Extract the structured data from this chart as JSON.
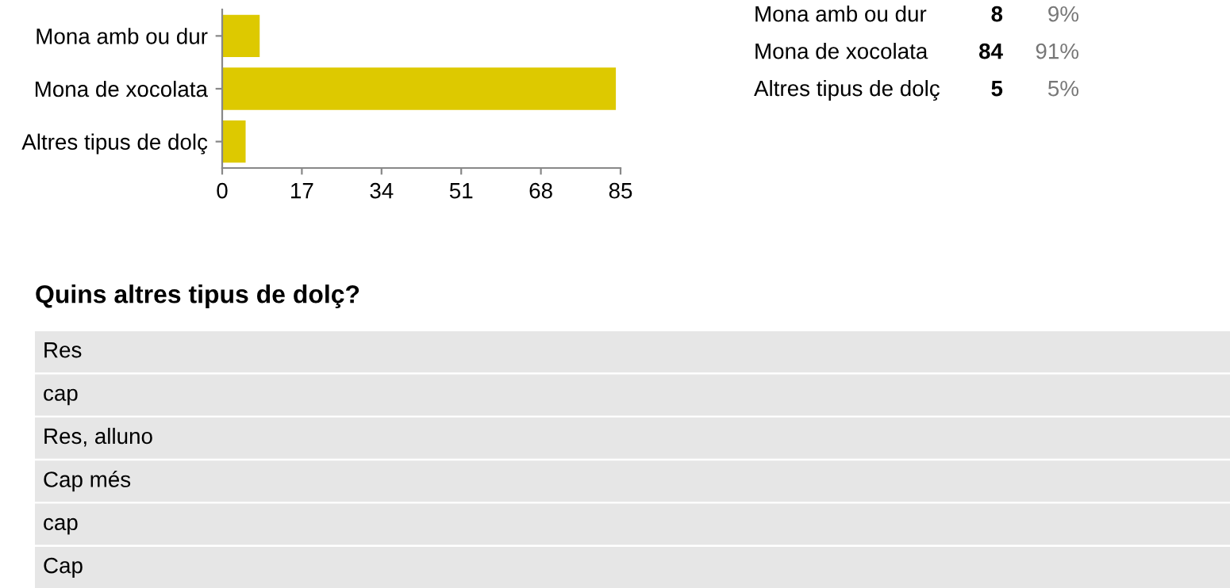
{
  "chart_data": [
    {
      "type": "bar",
      "orientation": "horizontal",
      "categories": [
        "Mona amb ou dur",
        "Mona de xocolata",
        "Altres tipus de dolç"
      ],
      "values": [
        8,
        84,
        5
      ],
      "color": "#ddc900",
      "xlim": [
        0,
        85
      ],
      "xticks": [
        0,
        17,
        34,
        51,
        68,
        85
      ],
      "grid": false,
      "legend": false,
      "annotations": [
        "Mona amb ou dur",
        "8",
        "9%",
        "Mona de xocolata",
        "84",
        "91%",
        "Altres tipus de dolç",
        "5",
        "5%"
      ]
    },
    {
      "type": "other",
      "title": "Quins altres tipus de dolç?",
      "annotations": [
        "Res",
        "cap",
        "Res, alluno",
        "Cap més",
        "cap",
        "Cap"
      ]
    }
  ]
}
